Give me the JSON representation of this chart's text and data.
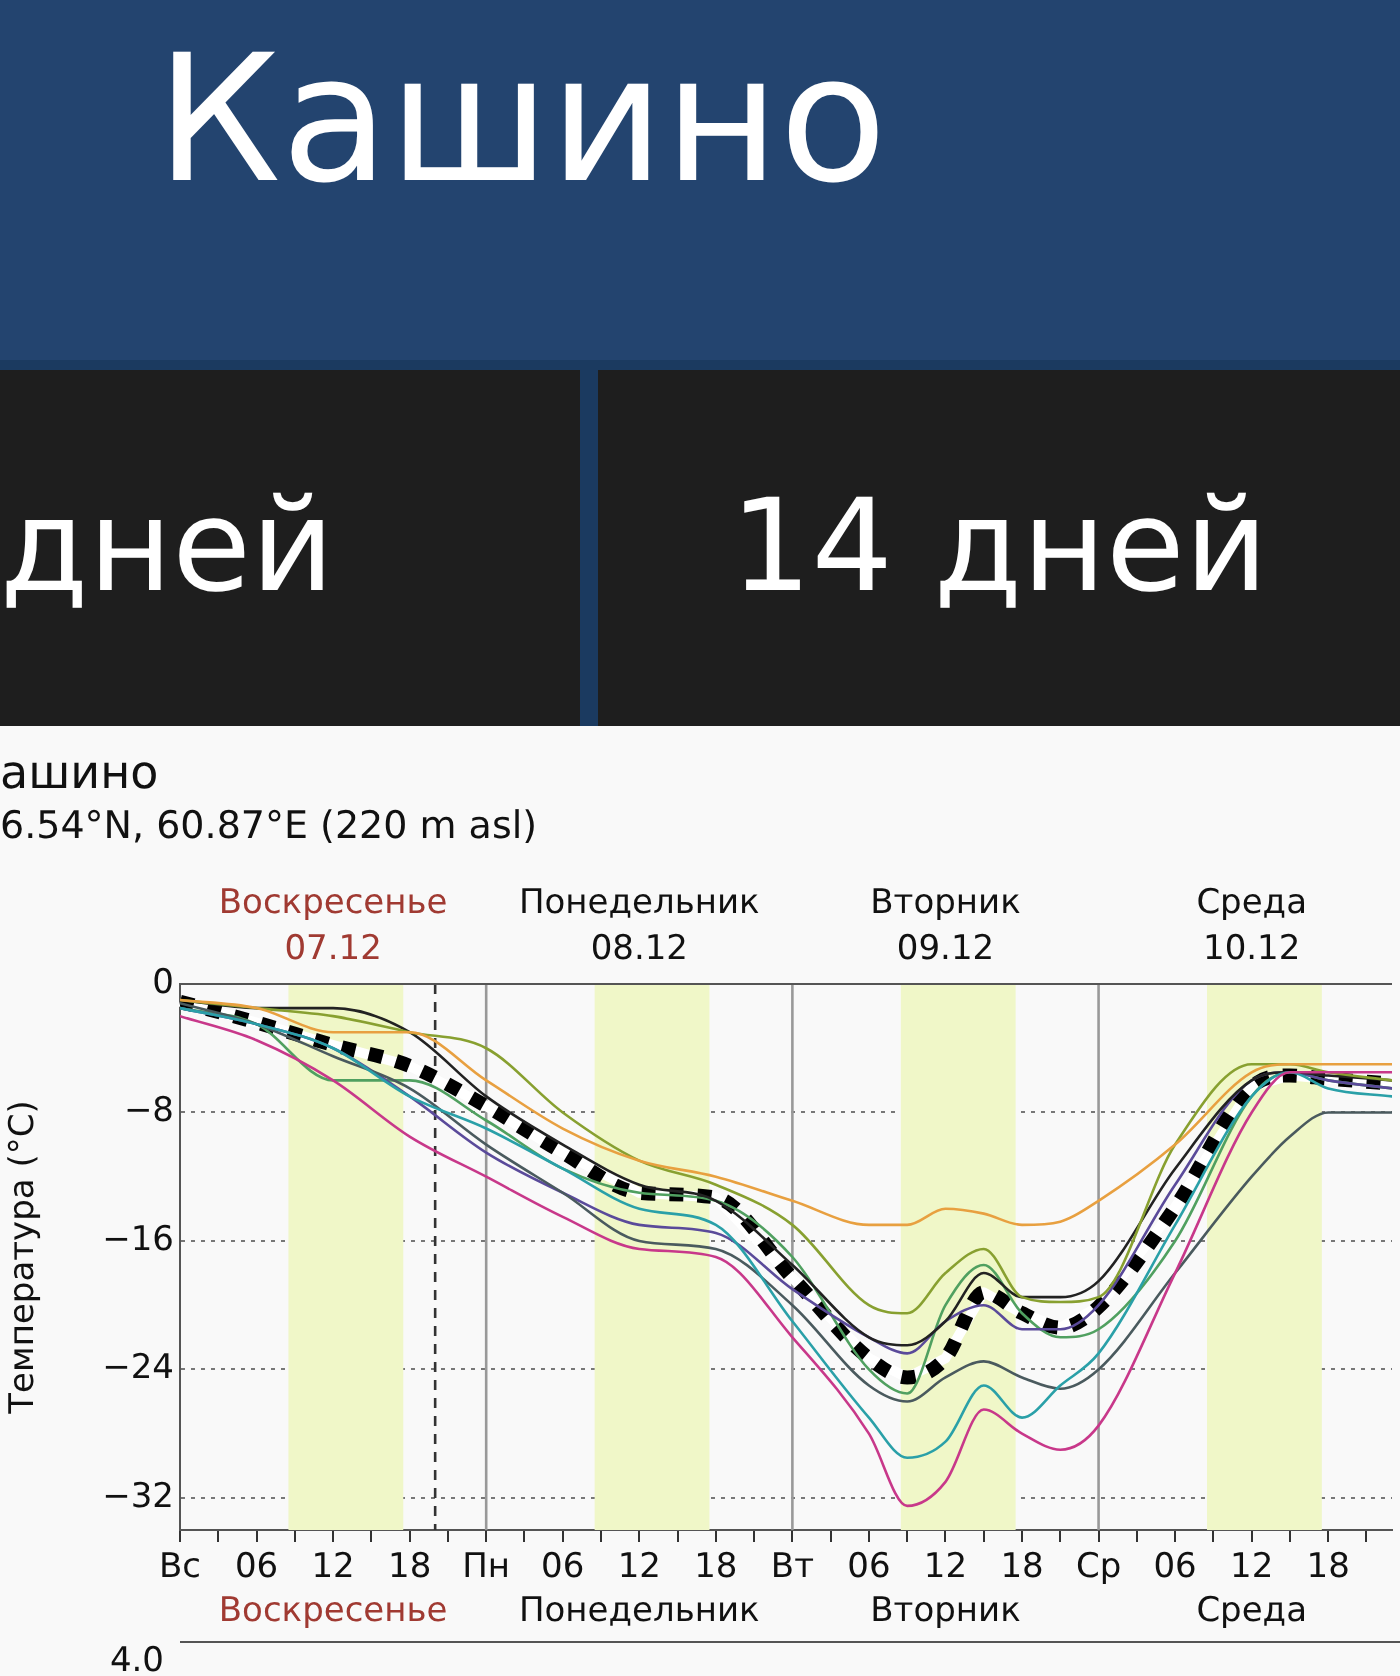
{
  "chart_data": {
    "type": "line",
    "title": "ашино",
    "subtitle": "6.54°N, 60.87°E (220 m asl)",
    "ylabel": "Температура (°C)",
    "annotations": [
      "Кашино",
      "дней",
      "14 дней",
      "Воскресенье\n07.12",
      "Понедельник\n08.12",
      "Вторник\n09.12",
      "Среда\n10.12",
      "Воскресенье",
      "Понедельник",
      "Вторник",
      "Среда",
      "4.0"
    ],
    "x": [
      "--12-07T00:00",
      "--12-07T06:00",
      "--12-07T12:00",
      "--12-07T18:00",
      "--12-08T00:00",
      "--12-08T06:00",
      "--12-08T12:00",
      "--12-08T18:00",
      "--12-09T00:00",
      "--12-09T06:00",
      "--12-09T09:00",
      "--12-09T12:00",
      "--12-09T15:00",
      "--12-09T18:00",
      "--12-09T21:00",
      "--12-10T00:00",
      "--12-10T06:00",
      "--12-10T12:00",
      "--12-10T15:00",
      "--12-10T18:00",
      "--12-10T23:00"
    ],
    "series": [
      {
        "color": "#e8a040",
        "values": [
          -1,
          -1.5,
          -3,
          -3,
          -6,
          -9,
          -11,
          -12,
          -13.5,
          -15,
          -15,
          -14,
          -14.3,
          -15,
          -14.8,
          -13.5,
          -10,
          -5.5,
          -5,
          -5,
          -5
        ]
      },
      {
        "color": "#c8388a",
        "values": [
          -2,
          -3.5,
          -6,
          -9.5,
          -12,
          -14.5,
          -16.5,
          -17,
          -22,
          -28,
          -32.5,
          -31,
          -26.5,
          -28,
          -29,
          -27.5,
          -18,
          -8,
          -5.5,
          -5.5,
          -5.5
        ]
      },
      {
        "color": "#2aa0a8",
        "values": [
          -1.5,
          -2.5,
          -4,
          -7,
          -9,
          -11.5,
          -14,
          -15,
          -21,
          -27,
          -29.5,
          -28.5,
          -25,
          -27,
          -25,
          -23,
          -15,
          -7,
          -5.5,
          -6.5,
          -7
        ]
      },
      {
        "color": "#4a5a5e",
        "values": [
          -1.2,
          -2.5,
          -4.5,
          -6.5,
          -10,
          -13,
          -16,
          -16.5,
          -20,
          -25,
          -26,
          -24.5,
          -23.5,
          -24.5,
          -25.2,
          -24,
          -18,
          -12,
          -9.5,
          -8,
          -8
        ]
      },
      {
        "color": "#88a030",
        "values": [
          -1,
          -1.5,
          -2,
          -3,
          -4,
          -8,
          -11,
          -12.5,
          -15,
          -20,
          -20.5,
          -18,
          -16.5,
          -19.5,
          -19.8,
          -19.5,
          -10,
          -5,
          -5,
          -5.5,
          -6
        ]
      },
      {
        "color": "#222222",
        "values": [
          -1,
          -1.5,
          -1.5,
          -3,
          -7,
          -10,
          -12.5,
          -13.5,
          -17.5,
          -22,
          -22.5,
          -21,
          -18,
          -19.5,
          -19.5,
          -18.5,
          -11.5,
          -6,
          -5.5,
          -5.7,
          -6
        ]
      },
      {
        "color": "#5a4a9a",
        "values": [
          -1.5,
          -2.5,
          -4,
          -7,
          -10.5,
          -13,
          -15,
          -15.5,
          -19,
          -22,
          -23,
          -21,
          -20,
          -21.5,
          -21.5,
          -20,
          -12.5,
          -6,
          -5.5,
          -6,
          -6.5
        ]
      },
      {
        "color": "#50a060",
        "values": [
          -1.5,
          -2.5,
          -6,
          -6,
          -8.5,
          -11.5,
          -13,
          -13.5,
          -17,
          -24,
          -25.5,
          -20,
          -17.5,
          -20.5,
          -22,
          -21.5,
          -16,
          -7,
          -5.5,
          -6,
          -6.5
        ]
      },
      {
        "color": "#000000",
        "line_style": "dashed",
        "values": [
          -1.1,
          -2.4,
          -3.8,
          -5.1,
          -7.6,
          -10.5,
          -13,
          -13.3,
          -18.3,
          -23.3,
          -24.5,
          -23.3,
          -19.2,
          -20.5,
          -21.4,
          -20.1,
          -13.9,
          -6.4,
          -5.7,
          -5.9,
          -6.2
        ]
      }
    ],
    "xlim": [
      "--12-07T00:00",
      "--12-10T23:00"
    ],
    "xticks": [
      {
        "value": "--12-07T00:00",
        "label": "Вс"
      },
      {
        "value": "--12-07T03:00",
        "label": null
      },
      {
        "value": "--12-07T06:00",
        "label": "06"
      },
      {
        "value": "--12-07T09:00",
        "label": null
      },
      {
        "value": "--12-07T12:00",
        "label": "12"
      },
      {
        "value": "--12-07T15:00",
        "label": null
      },
      {
        "value": "--12-07T18:00",
        "label": "18"
      },
      {
        "value": "--12-07T21:00",
        "label": null
      },
      {
        "value": "--12-08T00:00",
        "label": "Пн"
      },
      {
        "value": "--12-08T03:00",
        "label": null
      },
      {
        "value": "--12-08T06:00",
        "label": "06"
      },
      {
        "value": "--12-08T09:00",
        "label": null
      },
      {
        "value": "--12-08T12:00",
        "label": "12"
      },
      {
        "value": "--12-08T15:00",
        "label": null
      },
      {
        "value": "--12-08T18:00",
        "label": "18"
      },
      {
        "value": "--12-08T21:00",
        "label": null
      },
      {
        "value": "--12-09T00:00",
        "label": "Вт"
      },
      {
        "value": "--12-09T03:00",
        "label": null
      },
      {
        "value": "--12-09T06:00",
        "label": "06"
      },
      {
        "value": "--12-09T09:00",
        "label": null
      },
      {
        "value": "--12-09T12:00",
        "label": "12"
      },
      {
        "value": "--12-09T15:00",
        "label": null
      },
      {
        "value": "--12-09T18:00",
        "label": "18"
      },
      {
        "value": "--12-09T21:00",
        "label": null
      },
      {
        "value": "--12-10T00:00",
        "label": "Ср"
      },
      {
        "value": "--12-10T03:00",
        "label": null
      },
      {
        "value": "--12-10T06:00",
        "label": "06"
      },
      {
        "value": "--12-10T09:00",
        "label": null
      },
      {
        "value": "--12-10T12:00",
        "label": "12"
      },
      {
        "value": "--12-10T15:00",
        "label": null
      },
      {
        "value": "--12-10T18:00",
        "label": "18"
      },
      {
        "value": "--12-10T21:00",
        "label": null
      }
    ],
    "ylim": [
      -34,
      0
    ],
    "yticks": [
      0,
      -8,
      -16,
      -24,
      -32
    ],
    "grid": "y",
    "legend": false,
    "marker": "none",
    "ref_lines": [
      {
        "axis": "x",
        "value": "--12-07T20:00",
        "color": "#333333",
        "line_style": "dashed"
      },
      {
        "axis": "x",
        "value": "--12-08T00:00",
        "color": "#999999"
      },
      {
        "axis": "x",
        "value": "--12-09T00:00",
        "color": "#999999"
      },
      {
        "axis": "x",
        "value": "--12-10T00:00",
        "color": "#999999"
      }
    ],
    "bands": [
      {
        "axis": "x",
        "from": "--12-07T08:30",
        "to": "--12-07T17:30",
        "color": "#f0f7c8"
      },
      {
        "axis": "x",
        "from": "--12-08T08:30",
        "to": "--12-08T17:30",
        "color": "#f0f7c8"
      },
      {
        "axis": "x",
        "from": "--12-09T08:30",
        "to": "--12-09T17:30",
        "color": "#f0f7c8"
      },
      {
        "axis": "x",
        "from": "--12-10T08:30",
        "to": "--12-10T17:30",
        "color": "#f0f7c8"
      }
    ]
  }
}
